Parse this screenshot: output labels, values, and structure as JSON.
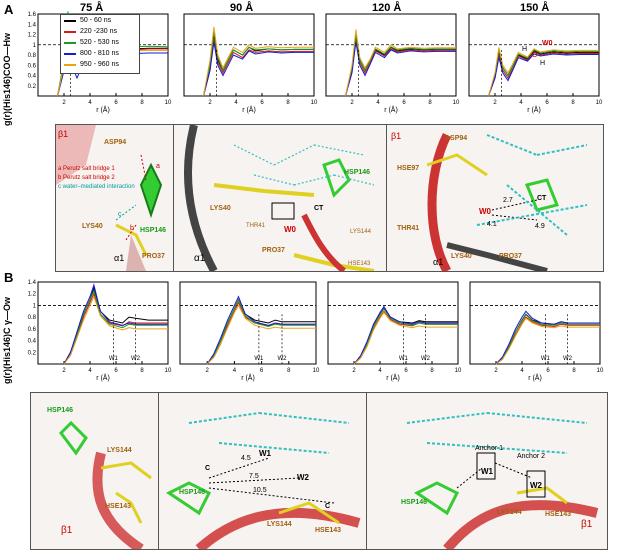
{
  "panelA": {
    "label": "A",
    "columns": [
      "75 Å",
      "90 Å",
      "120 Å",
      "150 Å"
    ],
    "ylabel": "g(r)(His146)COO—Hw",
    "xlabel": "r (Å)",
    "xticks": [
      "2",
      "4",
      "6",
      "8",
      "10"
    ],
    "yticks": [
      "0.2",
      "0.4",
      "0.6",
      "0.8",
      "1",
      "1.2",
      "1.4",
      "1.6"
    ],
    "legend": [
      "50 - 60 ns",
      "220 -230 ns",
      "520 - 530 ns",
      "800 - 810 ns",
      "950 - 960 ns"
    ],
    "water_label": "W0",
    "water_atoms": [
      "H",
      "O",
      "H"
    ]
  },
  "panelA_mol": {
    "left": {
      "beta": "β1",
      "alpha": "α1",
      "residues": [
        "ASP94",
        "LYS40",
        "HSP146",
        "PRO37"
      ],
      "legend": [
        {
          "key": "a",
          "text": "Perutz salt bridge 1",
          "color": "#cc0000"
        },
        {
          "key": "b",
          "text": "Perutz salt bridge 2",
          "color": "#cc0000"
        },
        {
          "key": "c",
          "text": "water–mediated interaction",
          "color": "#00a0a0"
        }
      ],
      "markers": [
        "a",
        "b",
        "c"
      ]
    },
    "mid": {
      "alpha": "α1",
      "residues": [
        "LYS40",
        "THR41",
        "W0",
        "CT",
        "HSP146",
        "PRO37",
        "LYS144",
        "HSE143"
      ]
    },
    "right": {
      "beta": "β1",
      "alpha": "α1",
      "residues": [
        "ASP94",
        "HSE97",
        "THR41",
        "LYS40",
        "PRO37",
        "W0",
        "CT"
      ],
      "distances": [
        "2.7",
        "4.1",
        "4.9"
      ]
    }
  },
  "panelB": {
    "label": "B",
    "ylabel": "g(r)(His146)C γ—Ow",
    "xlabel": "r (Å)",
    "xticks": [
      "2",
      "4",
      "6",
      "8",
      "10"
    ],
    "yticks": [
      "0.2",
      "0.4",
      "0.6",
      "0.8",
      "1",
      "1.2",
      "1.4"
    ],
    "markers": [
      "W1",
      "W2"
    ]
  },
  "panelB_mol": {
    "left": {
      "beta": "β1",
      "residues": [
        "HSP146",
        "LYS144",
        "HSE143"
      ]
    },
    "mid": {
      "residues": [
        "HSP146",
        "LYS144",
        "HSE143",
        "W1",
        "W2"
      ],
      "cgamma": [
        "C",
        "C"
      ],
      "distances": [
        "4.5",
        "7.5",
        "10.5"
      ]
    },
    "right": {
      "beta": "β1",
      "residues": [
        "HSP146",
        "LYS144",
        "HSE143",
        "W1",
        "W2"
      ],
      "anchors": [
        "Anchor 1",
        "Anchor 2"
      ]
    }
  },
  "chart_data": [
    {
      "type": "line",
      "panel": "A",
      "title": "75 Å",
      "xlabel": "r (Å)",
      "ylabel": "g(r)(His146)COO—Hw",
      "xlim": [
        0,
        10
      ],
      "ylim": [
        0,
        1.6
      ],
      "x": [
        1.5,
        2.0,
        2.3,
        2.6,
        3.0,
        3.4,
        3.8,
        4.5,
        5.0,
        5.5,
        6.5,
        7.5,
        8.5,
        10.0
      ],
      "series": [
        {
          "name": "50 - 60 ns",
          "values": [
            0.0,
            0.5,
            1.25,
            0.75,
            0.55,
            0.75,
            0.95,
            0.85,
            1.0,
            0.9,
            0.95,
            0.92,
            0.93,
            0.93
          ]
        },
        {
          "name": "220 -230 ns",
          "values": [
            0.0,
            0.6,
            1.35,
            0.8,
            0.5,
            0.7,
            0.9,
            0.8,
            0.95,
            0.9,
            0.93,
            0.9,
            0.92,
            0.92
          ]
        },
        {
          "name": "520 - 530 ns",
          "values": [
            0.0,
            0.7,
            1.65,
            0.9,
            0.45,
            0.8,
            1.0,
            0.85,
            1.05,
            0.95,
            0.98,
            0.96,
            0.97,
            0.96
          ]
        },
        {
          "name": "800 - 810 ns",
          "values": [
            0.0,
            0.5,
            1.1,
            0.6,
            0.35,
            0.6,
            0.8,
            0.7,
            0.85,
            0.8,
            0.85,
            0.83,
            0.84,
            0.84
          ]
        },
        {
          "name": "950 - 960 ns",
          "values": [
            0.0,
            0.6,
            1.4,
            0.85,
            0.55,
            0.75,
            0.95,
            0.8,
            0.9,
            0.87,
            0.9,
            0.88,
            0.89,
            0.89
          ]
        }
      ]
    },
    {
      "type": "line",
      "panel": "A",
      "title": "90 Å",
      "xlabel": "r (Å)",
      "xlim": [
        0,
        10
      ],
      "ylim": [
        0,
        1.6
      ],
      "x": [
        1.5,
        2.0,
        2.3,
        2.6,
        3.0,
        3.4,
        3.8,
        4.5,
        5.0,
        5.5,
        6.5,
        7.5,
        8.5,
        10.0
      ],
      "series": [
        {
          "name": "50 - 60 ns",
          "values": [
            0.0,
            0.6,
            1.2,
            0.7,
            0.5,
            0.7,
            0.9,
            0.8,
            0.95,
            0.88,
            0.92,
            0.9,
            0.91,
            0.91
          ]
        },
        {
          "name": "220 -230 ns",
          "values": [
            0.0,
            0.5,
            1.1,
            0.65,
            0.45,
            0.65,
            0.85,
            0.75,
            0.9,
            0.85,
            0.88,
            0.86,
            0.87,
            0.87
          ]
        },
        {
          "name": "520 - 530 ns",
          "values": [
            0.0,
            0.6,
            1.25,
            0.75,
            0.5,
            0.7,
            0.9,
            0.8,
            0.95,
            0.9,
            0.92,
            0.9,
            0.91,
            0.91
          ]
        },
        {
          "name": "800 - 810 ns",
          "values": [
            0.0,
            0.5,
            1.05,
            0.6,
            0.4,
            0.6,
            0.8,
            0.72,
            0.88,
            0.82,
            0.86,
            0.84,
            0.85,
            0.85
          ]
        },
        {
          "name": "950 - 960 ns",
          "values": [
            0.0,
            0.7,
            1.35,
            0.8,
            0.55,
            0.75,
            0.95,
            0.85,
            1.0,
            0.93,
            0.96,
            0.94,
            0.95,
            0.95
          ]
        }
      ]
    },
    {
      "type": "line",
      "panel": "A",
      "title": "120 Å",
      "xlabel": "r (Å)",
      "xlim": [
        0,
        10
      ],
      "ylim": [
        0,
        1.6
      ],
      "x": [
        1.5,
        2.0,
        2.3,
        2.6,
        3.0,
        3.4,
        3.8,
        4.5,
        5.0,
        5.5,
        6.5,
        7.5,
        8.5,
        10.0
      ],
      "series": [
        {
          "name": "50 - 60 ns",
          "values": [
            0.0,
            0.55,
            1.15,
            0.7,
            0.5,
            0.7,
            0.9,
            0.8,
            0.95,
            0.88,
            0.92,
            0.9,
            0.91,
            0.91
          ]
        },
        {
          "name": "220 -230 ns",
          "values": [
            0.0,
            0.5,
            1.1,
            0.65,
            0.45,
            0.65,
            0.88,
            0.78,
            0.92,
            0.86,
            0.9,
            0.88,
            0.89,
            0.89
          ]
        },
        {
          "name": "520 - 530 ns",
          "values": [
            0.0,
            0.55,
            1.2,
            0.7,
            0.5,
            0.7,
            0.92,
            0.82,
            0.96,
            0.9,
            0.93,
            0.91,
            0.92,
            0.92
          ]
        },
        {
          "name": "800 - 810 ns",
          "values": [
            0.0,
            0.45,
            1.05,
            0.6,
            0.4,
            0.62,
            0.85,
            0.75,
            0.9,
            0.84,
            0.88,
            0.86,
            0.87,
            0.87
          ]
        },
        {
          "name": "950 - 960 ns",
          "values": [
            0.0,
            0.6,
            1.3,
            0.75,
            0.55,
            0.72,
            0.95,
            0.85,
            1.0,
            0.92,
            0.95,
            0.93,
            0.94,
            0.94
          ]
        }
      ]
    },
    {
      "type": "line",
      "panel": "A",
      "title": "150 Å",
      "xlabel": "r (Å)",
      "xlim": [
        0,
        10
      ],
      "ylim": [
        0,
        1.6
      ],
      "x": [
        1.5,
        2.0,
        2.3,
        2.6,
        3.0,
        3.4,
        3.8,
        4.5,
        5.0,
        5.5,
        6.5,
        7.5,
        8.5,
        10.0
      ],
      "series": [
        {
          "name": "50 - 60 ns",
          "values": [
            0.0,
            0.4,
            0.85,
            0.55,
            0.4,
            0.6,
            0.8,
            0.72,
            0.88,
            0.82,
            0.86,
            0.84,
            0.85,
            0.85
          ]
        },
        {
          "name": "220 -230 ns",
          "values": [
            0.0,
            0.35,
            0.8,
            0.5,
            0.35,
            0.55,
            0.78,
            0.7,
            0.85,
            0.8,
            0.84,
            0.82,
            0.83,
            0.83
          ]
        },
        {
          "name": "520 - 530 ns",
          "values": [
            0.0,
            0.4,
            0.9,
            0.55,
            0.4,
            0.6,
            0.82,
            0.74,
            0.9,
            0.84,
            0.88,
            0.86,
            0.87,
            0.87
          ]
        },
        {
          "name": "800 - 810 ns",
          "values": [
            0.0,
            0.35,
            0.75,
            0.45,
            0.3,
            0.52,
            0.75,
            0.68,
            0.82,
            0.78,
            0.82,
            0.8,
            0.81,
            0.81
          ]
        },
        {
          "name": "950 - 960 ns",
          "values": [
            0.0,
            0.45,
            0.95,
            0.6,
            0.45,
            0.65,
            0.85,
            0.76,
            0.92,
            0.86,
            0.9,
            0.88,
            0.89,
            0.89
          ]
        }
      ]
    },
    {
      "type": "line",
      "panel": "B",
      "title": "",
      "xlabel": "r (Å)",
      "ylabel": "g(r)(His146)C γ—Ow",
      "xlim": [
        0,
        10
      ],
      "ylim": [
        0,
        1.4
      ],
      "x": [
        2.0,
        2.5,
        3.0,
        3.5,
        4.0,
        4.3,
        4.8,
        5.5,
        6.5,
        7.0,
        7.5,
        8.5,
        10.0
      ],
      "series": [
        {
          "name": "50 - 60 ns",
          "values": [
            0.0,
            0.2,
            0.5,
            0.85,
            1.1,
            1.3,
            0.9,
            0.75,
            0.7,
            0.8,
            0.78,
            0.75,
            0.75
          ]
        },
        {
          "name": "220 -230 ns",
          "values": [
            0.0,
            0.15,
            0.45,
            0.8,
            1.05,
            1.2,
            0.85,
            0.7,
            0.65,
            0.72,
            0.7,
            0.7,
            0.7
          ]
        },
        {
          "name": "520 - 530 ns",
          "values": [
            0.0,
            0.2,
            0.5,
            0.85,
            1.1,
            1.25,
            0.85,
            0.68,
            0.62,
            0.68,
            0.66,
            0.66,
            0.66
          ]
        },
        {
          "name": "800 - 810 ns",
          "values": [
            0.0,
            0.2,
            0.55,
            0.9,
            1.15,
            1.35,
            0.9,
            0.72,
            0.66,
            0.7,
            0.68,
            0.68,
            0.68
          ]
        },
        {
          "name": "950 - 960 ns",
          "values": [
            0.0,
            0.15,
            0.45,
            0.75,
            1.0,
            1.15,
            0.82,
            0.65,
            0.58,
            0.62,
            0.6,
            0.6,
            0.6
          ]
        }
      ]
    },
    {
      "type": "line",
      "panel": "B",
      "title": "",
      "xlabel": "r (Å)",
      "xlim": [
        0,
        10
      ],
      "ylim": [
        0,
        1.4
      ],
      "x": [
        2.0,
        2.5,
        3.0,
        3.5,
        4.0,
        4.3,
        4.8,
        5.5,
        6.5,
        7.0,
        7.5,
        8.5,
        10.0
      ],
      "series": [
        {
          "name": "50 - 60 ns",
          "values": [
            0.0,
            0.15,
            0.4,
            0.7,
            0.95,
            1.1,
            0.85,
            0.75,
            0.7,
            0.75,
            0.72,
            0.72,
            0.72
          ]
        },
        {
          "name": "220 -230 ns",
          "values": [
            0.0,
            0.12,
            0.35,
            0.65,
            0.9,
            1.05,
            0.8,
            0.7,
            0.65,
            0.7,
            0.68,
            0.68,
            0.68
          ]
        },
        {
          "name": "520 - 530 ns",
          "values": [
            0.0,
            0.15,
            0.4,
            0.7,
            0.95,
            1.1,
            0.82,
            0.7,
            0.64,
            0.68,
            0.66,
            0.66,
            0.66
          ]
        },
        {
          "name": "800 - 810 ns",
          "values": [
            0.0,
            0.18,
            0.45,
            0.75,
            1.0,
            1.15,
            0.85,
            0.72,
            0.66,
            0.7,
            0.68,
            0.68,
            0.68
          ]
        },
        {
          "name": "950 - 960 ns",
          "values": [
            0.0,
            0.12,
            0.35,
            0.62,
            0.88,
            1.0,
            0.78,
            0.66,
            0.6,
            0.63,
            0.61,
            0.61,
            0.61
          ]
        }
      ]
    },
    {
      "type": "line",
      "panel": "B",
      "title": "",
      "xlabel": "r (Å)",
      "xlim": [
        0,
        10
      ],
      "ylim": [
        0,
        1.4
      ],
      "x": [
        2.0,
        2.5,
        3.0,
        3.5,
        4.0,
        4.3,
        4.8,
        5.5,
        6.5,
        7.0,
        7.5,
        8.5,
        10.0
      ],
      "series": [
        {
          "name": "50 - 60 ns",
          "values": [
            0.0,
            0.12,
            0.35,
            0.65,
            0.85,
            0.95,
            0.8,
            0.72,
            0.7,
            0.74,
            0.72,
            0.72,
            0.72
          ]
        },
        {
          "name": "220 -230 ns",
          "values": [
            0.0,
            0.1,
            0.3,
            0.6,
            0.8,
            0.9,
            0.76,
            0.68,
            0.65,
            0.7,
            0.68,
            0.68,
            0.68
          ]
        },
        {
          "name": "520 - 530 ns",
          "values": [
            0.0,
            0.12,
            0.34,
            0.64,
            0.84,
            0.94,
            0.78,
            0.7,
            0.66,
            0.7,
            0.68,
            0.68,
            0.68
          ]
        },
        {
          "name": "800 - 810 ns",
          "values": [
            0.0,
            0.14,
            0.38,
            0.68,
            0.88,
            0.98,
            0.8,
            0.72,
            0.68,
            0.72,
            0.7,
            0.7,
            0.7
          ]
        },
        {
          "name": "950 - 960 ns",
          "values": [
            0.0,
            0.1,
            0.3,
            0.58,
            0.78,
            0.88,
            0.74,
            0.66,
            0.62,
            0.65,
            0.63,
            0.63,
            0.63
          ]
        }
      ]
    },
    {
      "type": "line",
      "panel": "B",
      "title": "",
      "xlabel": "r (Å)",
      "xlim": [
        0,
        10
      ],
      "ylim": [
        0,
        1.4
      ],
      "x": [
        2.0,
        2.5,
        3.0,
        3.5,
        4.0,
        4.3,
        4.8,
        5.5,
        6.5,
        7.0,
        7.5,
        8.5,
        10.0
      ],
      "series": [
        {
          "name": "50 - 60 ns",
          "values": [
            0.0,
            0.1,
            0.3,
            0.55,
            0.75,
            0.85,
            0.75,
            0.7,
            0.68,
            0.72,
            0.7,
            0.7,
            0.7
          ]
        },
        {
          "name": "220 -230 ns",
          "values": [
            0.0,
            0.08,
            0.28,
            0.5,
            0.7,
            0.8,
            0.72,
            0.66,
            0.64,
            0.68,
            0.66,
            0.66,
            0.66
          ]
        },
        {
          "name": "520 - 530 ns",
          "values": [
            0.0,
            0.1,
            0.3,
            0.55,
            0.74,
            0.84,
            0.74,
            0.68,
            0.66,
            0.7,
            0.68,
            0.68,
            0.68
          ]
        },
        {
          "name": "800 - 810 ns",
          "values": [
            0.0,
            0.12,
            0.34,
            0.6,
            0.8,
            0.9,
            0.78,
            0.7,
            0.68,
            0.72,
            0.7,
            0.7,
            0.7
          ]
        },
        {
          "name": "950 - 960 ns",
          "values": [
            0.0,
            0.08,
            0.26,
            0.48,
            0.68,
            0.78,
            0.7,
            0.64,
            0.62,
            0.65,
            0.63,
            0.63,
            0.63
          ]
        }
      ]
    }
  ],
  "series_colors": [
    "#000000",
    "#d11a1a",
    "#1f9a1f",
    "#1a1adb",
    "#e8a317"
  ]
}
